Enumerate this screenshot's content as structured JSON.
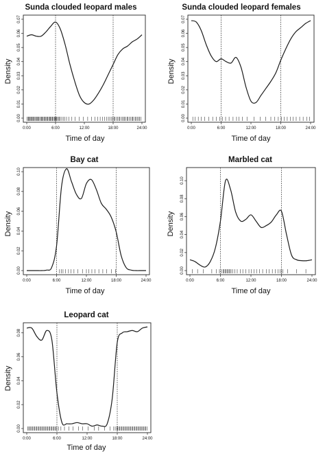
{
  "chart_data": [
    {
      "type": "line",
      "title": "Sunda clouded leopard males",
      "xlabel": "Time of day",
      "ylabel": "Density",
      "xlim": [
        0,
        24
      ],
      "ylim": [
        0,
        0.07
      ],
      "xticks": [
        0,
        6,
        12,
        18,
        24
      ],
      "xtick_labels": [
        "0:00",
        "6:00",
        "12:00",
        "18:00",
        "24:00"
      ],
      "yticks": [
        0,
        0.01,
        0.02,
        0.03,
        0.04,
        0.05,
        0.06,
        0.07
      ],
      "ytick_labels": [
        "0.00",
        "0.01",
        "0.02",
        "0.03",
        "0.04",
        "0.05",
        "0.06",
        "0.07"
      ],
      "reference_lines_x": [
        6,
        18
      ],
      "x": [
        0,
        1,
        2,
        3,
        4,
        5,
        6,
        7,
        8,
        9,
        10,
        11,
        12,
        13,
        14,
        15,
        16,
        17,
        18,
        19,
        20,
        21,
        22,
        23,
        24
      ],
      "y": [
        0.058,
        0.059,
        0.058,
        0.058,
        0.061,
        0.065,
        0.068,
        0.063,
        0.052,
        0.038,
        0.026,
        0.016,
        0.011,
        0.01,
        0.013,
        0.018,
        0.024,
        0.031,
        0.038,
        0.045,
        0.049,
        0.051,
        0.054,
        0.056,
        0.059
      ],
      "rug": [
        0.1,
        0.3,
        0.4,
        0.6,
        0.7,
        0.9,
        1.0,
        1.2,
        1.4,
        1.5,
        1.7,
        1.9,
        2.0,
        2.2,
        2.4,
        2.5,
        2.7,
        2.9,
        3.1,
        3.2,
        3.4,
        3.6,
        3.7,
        3.9,
        4.1,
        4.3,
        4.4,
        4.6,
        4.8,
        4.9,
        5.1,
        5.3,
        5.4,
        5.6,
        5.8,
        5.9,
        6.1,
        6.2,
        6.4,
        6.6,
        6.8,
        7.0,
        7.3,
        7.6,
        7.9,
        8.3,
        8.8,
        9.4,
        10.1,
        10.9,
        11.8,
        12.7,
        13.5,
        14.2,
        14.8,
        15.3,
        15.8,
        16.2,
        16.6,
        17.0,
        17.3,
        17.6,
        17.9,
        18.2,
        18.4,
        18.7,
        18.9,
        19.2,
        19.4,
        19.7,
        19.9,
        20.2,
        20.4,
        20.6,
        20.9,
        21.1,
        21.4,
        21.6,
        21.9,
        22.1,
        22.3,
        22.6,
        22.8,
        23.1,
        23.3,
        23.5,
        23.8
      ]
    },
    {
      "type": "line",
      "title": "Sunda clouded leopard females",
      "xlabel": "Time of day",
      "ylabel": "Density",
      "xlim": [
        0,
        24
      ],
      "ylim": [
        0,
        0.07
      ],
      "xticks": [
        0,
        6,
        12,
        18,
        24
      ],
      "xtick_labels": [
        "0:00",
        "6:00",
        "12:00",
        "18:00",
        "24:00"
      ],
      "yticks": [
        0,
        0.01,
        0.02,
        0.03,
        0.04,
        0.05,
        0.06,
        0.07
      ],
      "ytick_labels": [
        "0.00",
        "0.01",
        "0.02",
        "0.03",
        "0.04",
        "0.05",
        "0.06",
        "0.07"
      ],
      "reference_lines_x": [
        6,
        18
      ],
      "x": [
        0,
        1,
        2,
        3,
        4,
        5,
        6,
        7,
        8,
        9,
        10,
        11,
        12,
        13,
        14,
        15,
        16,
        17,
        18,
        19,
        20,
        21,
        22,
        23,
        24
      ],
      "y": [
        0.069,
        0.068,
        0.062,
        0.052,
        0.044,
        0.04,
        0.042,
        0.04,
        0.039,
        0.043,
        0.036,
        0.022,
        0.012,
        0.011,
        0.016,
        0.021,
        0.026,
        0.032,
        0.041,
        0.049,
        0.056,
        0.061,
        0.064,
        0.067,
        0.069
      ],
      "rug": [
        0.3,
        0.8,
        1.4,
        2.0,
        2.7,
        3.5,
        4.3,
        5.0,
        5.7,
        6.3,
        6.9,
        7.6,
        8.4,
        9.1,
        9.6,
        10.3,
        11.2,
        12.6,
        13.9,
        15.0,
        16.0,
        16.8,
        17.5,
        18.1,
        18.7,
        19.3,
        19.9,
        20.5,
        21.1,
        21.8,
        22.5,
        23.2,
        23.8
      ]
    },
    {
      "type": "line",
      "title": "Bay cat",
      "xlabel": "Time of day",
      "ylabel": "Density",
      "xlim": [
        0,
        24
      ],
      "ylim": [
        0,
        0.1
      ],
      "xticks": [
        0,
        6,
        12,
        18,
        24
      ],
      "xtick_labels": [
        "0:00",
        "6:00",
        "12:00",
        "18:00",
        "24:00"
      ],
      "yticks": [
        0,
        0.02,
        0.04,
        0.06,
        0.08,
        0.1
      ],
      "ytick_labels": [
        "0.00",
        "0.02",
        "0.04",
        "0.06",
        "0.08",
        "0.10"
      ],
      "reference_lines_x": [
        6,
        18
      ],
      "x": [
        0,
        1,
        2,
        3,
        4,
        5,
        6,
        7,
        8,
        9,
        10,
        11,
        12,
        13,
        14,
        15,
        16,
        17,
        18,
        19,
        20,
        21,
        22,
        23,
        24
      ],
      "y": [
        0.0,
        0.0,
        0.0,
        0.0,
        0.0005,
        0.003,
        0.025,
        0.085,
        0.103,
        0.09,
        0.077,
        0.073,
        0.088,
        0.092,
        0.082,
        0.068,
        0.062,
        0.054,
        0.039,
        0.015,
        0.003,
        0.0005,
        0.0,
        0.0,
        0.0
      ],
      "rug": [
        6.6,
        7.0,
        7.3,
        7.8,
        8.4,
        8.9,
        9.5,
        10.3,
        11.2,
        12.0,
        12.5,
        13.1,
        13.7,
        14.5,
        15.3,
        16.1,
        17.0,
        17.9
      ]
    },
    {
      "type": "line",
      "title": "Marbled cat",
      "xlabel": "Time of day",
      "ylabel": "Density",
      "xlim": [
        0,
        24
      ],
      "ylim": [
        0,
        0.11
      ],
      "xticks": [
        0,
        6,
        12,
        18,
        24
      ],
      "xtick_labels": [
        "0:00",
        "6:00",
        "12:00",
        "18:00",
        "24:00"
      ],
      "yticks": [
        0,
        0.02,
        0.04,
        0.06,
        0.08,
        0.1
      ],
      "ytick_labels": [
        "0.00",
        "0.02",
        "0.04",
        "0.06",
        "0.08",
        "0.10"
      ],
      "reference_lines_x": [
        6,
        18
      ],
      "x": [
        0,
        1,
        2,
        3,
        4,
        5,
        6,
        7,
        8,
        9,
        10,
        11,
        12,
        13,
        14,
        15,
        16,
        17,
        18,
        19,
        20,
        21,
        22,
        23,
        24
      ],
      "y": [
        0.012,
        0.01,
        0.006,
        0.004,
        0.01,
        0.025,
        0.055,
        0.1,
        0.09,
        0.065,
        0.055,
        0.057,
        0.062,
        0.055,
        0.048,
        0.05,
        0.054,
        0.062,
        0.066,
        0.04,
        0.017,
        0.012,
        0.011,
        0.011,
        0.012
      ],
      "rug": [
        0.5,
        1.5,
        2.6,
        4.3,
        5.2,
        5.8,
        6.2,
        6.5,
        6.7,
        6.9,
        7.1,
        7.3,
        7.5,
        7.7,
        7.9,
        8.1,
        8.4,
        8.8,
        9.3,
        9.9,
        10.4,
        11.0,
        11.6,
        12.1,
        12.6,
        13.1,
        13.7,
        14.3,
        15.0,
        15.6,
        16.2,
        16.8,
        17.3,
        17.7,
        18.0,
        18.3,
        19.2,
        21.0,
        22.8
      ]
    },
    {
      "type": "line",
      "title": "Leopard cat",
      "xlabel": "Time of day",
      "ylabel": "Density",
      "xlim": [
        0,
        24
      ],
      "ylim": [
        0,
        0.085
      ],
      "xticks": [
        0,
        6,
        12,
        18,
        24
      ],
      "xtick_labels": [
        "0:00",
        "6:00",
        "12:00",
        "18:00",
        "24:00"
      ],
      "yticks": [
        0,
        0.02,
        0.04,
        0.06,
        0.08
      ],
      "ytick_labels": [
        "0.00",
        "0.02",
        "0.04",
        "0.06",
        "0.08"
      ],
      "reference_lines_x": [
        6,
        18
      ],
      "x": [
        0,
        1,
        2,
        3,
        4,
        5,
        6,
        7,
        8,
        9,
        10,
        11,
        12,
        13,
        14,
        15,
        16,
        17,
        18,
        19,
        20,
        21,
        22,
        23,
        24
      ],
      "y": [
        0.084,
        0.084,
        0.077,
        0.074,
        0.082,
        0.074,
        0.03,
        0.005,
        0.004,
        0.004,
        0.005,
        0.004,
        0.004,
        0.002,
        0.003,
        0.002,
        0.004,
        0.025,
        0.072,
        0.08,
        0.081,
        0.082,
        0.081,
        0.084,
        0.085
      ],
      "rug": [
        0.2,
        0.4,
        0.6,
        0.8,
        1.0,
        1.2,
        1.4,
        1.6,
        1.8,
        2.0,
        2.2,
        2.4,
        2.6,
        2.8,
        3.0,
        3.2,
        3.4,
        3.6,
        3.8,
        4.0,
        4.2,
        4.4,
        4.6,
        4.8,
        5.0,
        5.2,
        5.4,
        5.6,
        5.8,
        6.0,
        6.3,
        6.8,
        7.5,
        8.4,
        9.2,
        10.3,
        11.1,
        12.2,
        13.4,
        14.3,
        15.5,
        16.6,
        17.3,
        17.6,
        17.9,
        18.1,
        18.3,
        18.5,
        18.7,
        18.9,
        19.1,
        19.3,
        19.5,
        19.7,
        19.9,
        20.1,
        20.3,
        20.5,
        20.7,
        20.9,
        21.1,
        21.3,
        21.5,
        21.7,
        21.9,
        22.1,
        22.3,
        22.5,
        22.7,
        22.9,
        23.1,
        23.3,
        23.5,
        23.7,
        23.9
      ]
    }
  ]
}
